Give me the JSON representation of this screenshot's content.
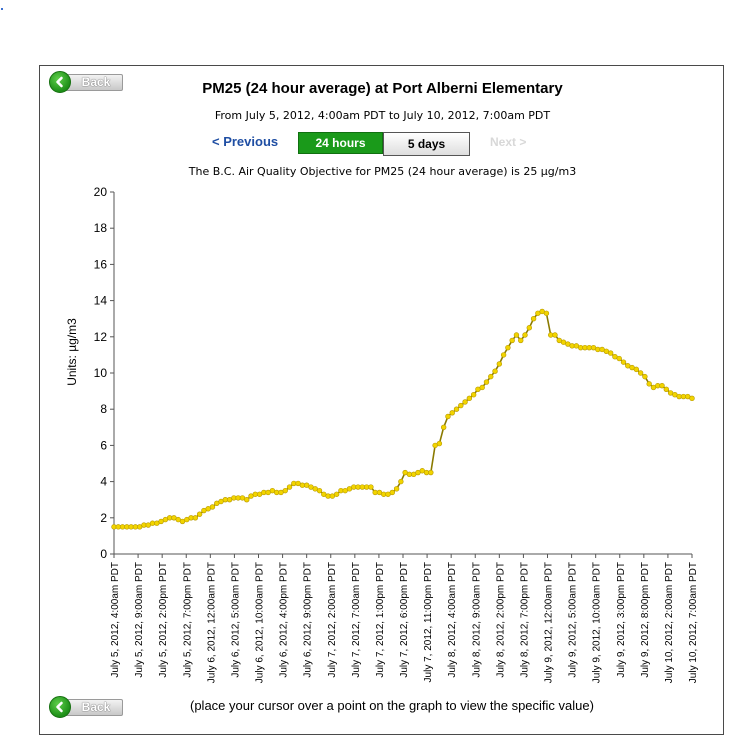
{
  "page": {
    "back_label": "Back",
    "title": "PM25 (24 hour average) at Port Alberni Elementary",
    "subtitle": "From July 5, 2012, 4:00am PDT to July 10, 2012, 7:00am PDT",
    "nav": {
      "previous_label": "< Previous",
      "tab_24h_label": "24 hours",
      "tab_5d_label": "5 days",
      "next_label": "Next >"
    },
    "objective_text": "The B.C. Air Quality Objective for PM25 (24 hour average) is 25 µg/m3",
    "hint_text": "(place your cursor over a point on the graph to view the specific value)"
  },
  "colors": {
    "line": "#8a7a00",
    "marker": "#f2d400",
    "active_tab": "#1a9a1a",
    "link": "#1f4ea3"
  },
  "chart_data": {
    "type": "line",
    "title": "",
    "xlabel": "",
    "ylabel": "Units: µg/m3",
    "ylim": [
      0,
      20
    ],
    "yticks": [
      0,
      2,
      4,
      6,
      8,
      10,
      12,
      14,
      16,
      18,
      20
    ],
    "grid": false,
    "x_tick_labels": [
      "July 5, 2012, 4:00am PDT",
      "July 5, 2012, 9:00am PDT",
      "July 5, 2012, 2:00pm PDT",
      "July 5, 2012, 7:00pm PDT",
      "July 6, 2012, 12:00am PDT",
      "July 6, 2012, 5:00am PDT",
      "July 6, 2012, 10:00am PDT",
      "July 6, 2012, 4:00pm PDT",
      "July 6, 2012, 9:00pm PDT",
      "July 7, 2012, 2:00am PDT",
      "July 7, 2012, 7:00am PDT",
      "July 7, 2012, 1:00pm PDT",
      "July 7, 2012, 6:00pm PDT",
      "July 7, 2012, 11:00pm PDT",
      "July 8, 2012, 4:00am PDT",
      "July 8, 2012, 9:00am PDT",
      "July 8, 2012, 2:00pm PDT",
      "July 8, 2012, 7:00pm PDT",
      "July 9, 2012, 12:00am PDT",
      "July 9, 2012, 5:00am PDT",
      "July 9, 2012, 10:00am PDT",
      "July 9, 2012, 3:00pm PDT",
      "July 9, 2012, 8:00pm PDT",
      "July 10, 2012, 2:00am PDT",
      "July 10, 2012, 7:00am PDT"
    ],
    "series": [
      {
        "values": [
          1.5,
          1.5,
          1.5,
          1.5,
          1.5,
          1.5,
          1.5,
          1.6,
          1.6,
          1.7,
          1.7,
          1.8,
          1.9,
          2.0,
          2.0,
          1.9,
          1.8,
          1.9,
          2.0,
          2.0,
          2.2,
          2.4,
          2.5,
          2.6,
          2.8,
          2.9,
          3.0,
          3.0,
          3.1,
          3.1,
          3.1,
          3.0,
          3.2,
          3.3,
          3.3,
          3.4,
          3.4,
          3.5,
          3.4,
          3.4,
          3.5,
          3.7,
          3.9,
          3.9,
          3.8,
          3.8,
          3.7,
          3.6,
          3.5,
          3.3,
          3.2,
          3.2,
          3.3,
          3.5,
          3.5,
          3.6,
          3.7,
          3.7,
          3.7,
          3.7,
          3.7,
          3.4,
          3.4,
          3.3,
          3.3,
          3.4,
          3.6,
          4.0,
          4.5,
          4.4,
          4.4,
          4.5,
          4.6,
          4.5,
          4.5,
          6.0,
          6.1,
          7.0,
          7.6,
          7.8,
          8.0,
          8.2,
          8.4,
          8.6,
          8.8,
          9.1,
          9.2,
          9.5,
          9.8,
          10.1,
          10.5,
          11.0,
          11.4,
          11.8,
          12.1,
          11.8,
          12.1,
          12.5,
          13.0,
          13.3,
          13.4,
          13.3,
          12.1,
          12.1,
          11.8,
          11.7,
          11.6,
          11.5,
          11.5,
          11.4,
          11.4,
          11.4,
          11.4,
          11.3,
          11.3,
          11.2,
          11.1,
          10.9,
          10.8,
          10.6,
          10.4,
          10.3,
          10.2,
          10.0,
          9.8,
          9.4,
          9.2,
          9.3,
          9.3,
          9.1,
          8.9,
          8.8,
          8.7,
          8.7,
          8.7,
          8.6
        ]
      }
    ]
  }
}
